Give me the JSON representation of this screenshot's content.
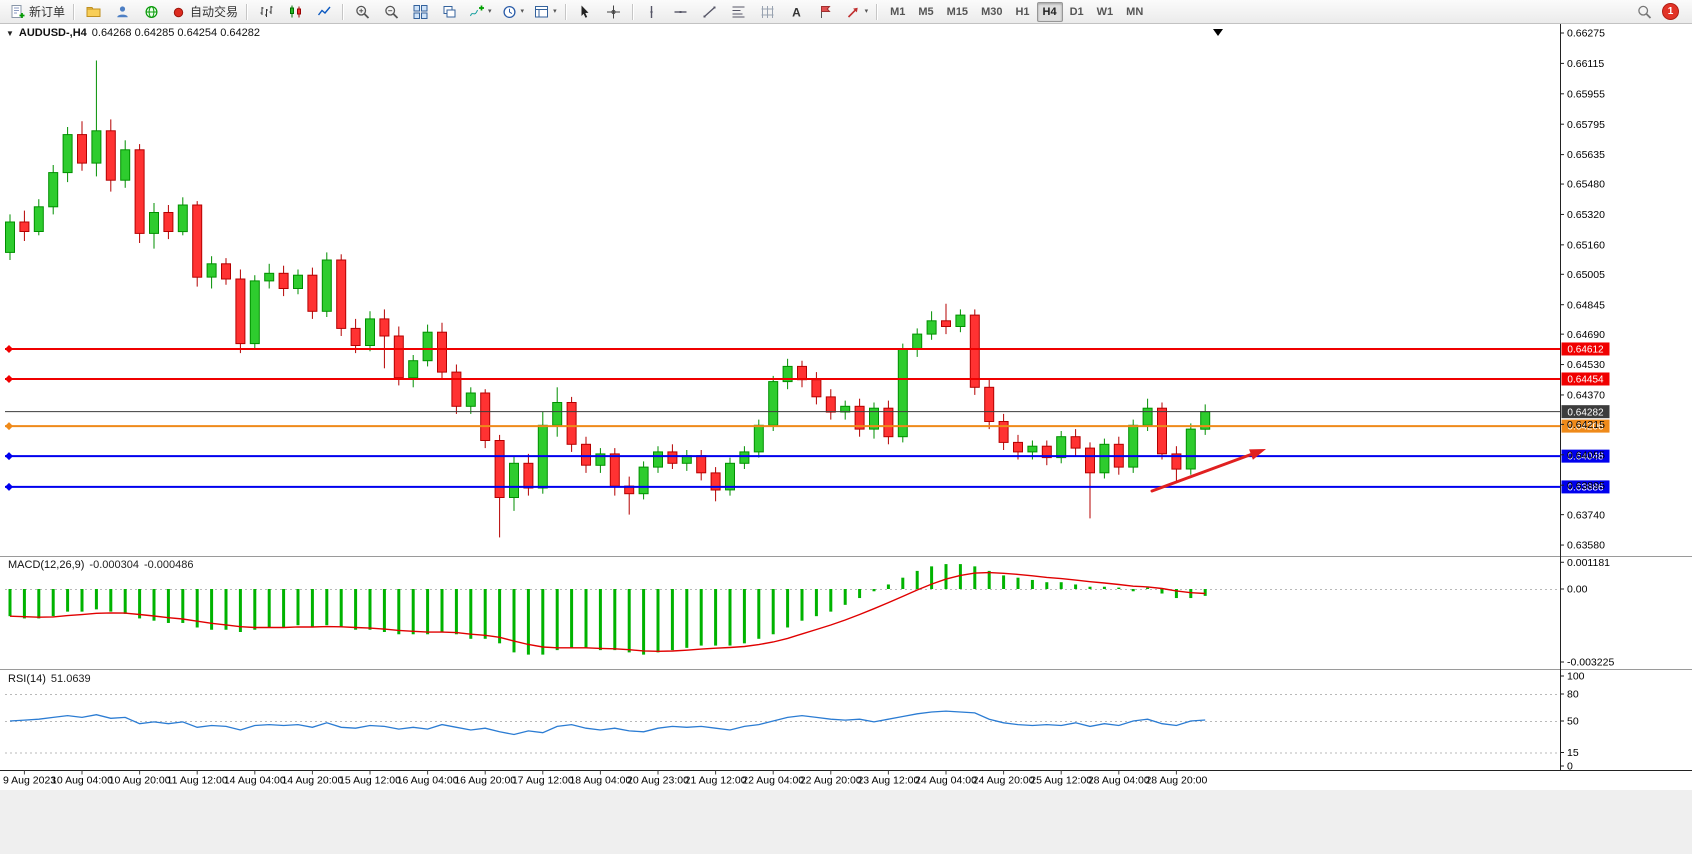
{
  "toolbar": {
    "new_order": "新订单",
    "auto_trading": "自动交易",
    "timeframes": [
      "M1",
      "M5",
      "M15",
      "M30",
      "H1",
      "H4",
      "D1",
      "W1",
      "MN"
    ],
    "active_timeframe": "H4",
    "notification_count": "1"
  },
  "window": {
    "symbol_label": "AUDUSD-,H4",
    "ohlc_label": "0.64268 0.64285 0.64254 0.64282"
  },
  "chart_data": {
    "type": "candlestick",
    "title": "AUDUSD- H4 chart with MACD and RSI",
    "symbol": "AUDUSD-",
    "timeframe": "H4",
    "current_ohlc": {
      "open": 0.64268,
      "high": 0.64285,
      "low": 0.64254,
      "close": 0.64282
    },
    "price_axis": [
      "0.66275",
      "0.66115",
      "0.65955",
      "0.65795",
      "0.65635",
      "0.65480",
      "0.65320",
      "0.65160",
      "0.65005",
      "0.64845",
      "0.64690",
      "0.64530",
      "0.64370",
      "0.64215",
      "0.64055",
      "0.63895",
      "0.63740",
      "0.63580"
    ],
    "time_labels": [
      "9 Aug 2023",
      "10 Aug 04:00",
      "10 Aug 20:00",
      "11 Aug 12:00",
      "14 Aug 04:00",
      "14 Aug 20:00",
      "15 Aug 12:00",
      "16 Aug 04:00",
      "16 Aug 20:00",
      "17 Aug 12:00",
      "18 Aug 04:00",
      "20 Aug 23:00",
      "21 Aug 12:00",
      "22 Aug 04:00",
      "22 Aug 20:00",
      "23 Aug 12:00",
      "24 Aug 04:00",
      "24 Aug 20:00",
      "25 Aug 12:00",
      "28 Aug 04:00",
      "28 Aug 20:00"
    ],
    "candles": [
      [
        0.6512,
        0.6532,
        0.6508,
        0.6528
      ],
      [
        0.6528,
        0.6534,
        0.6518,
        0.6523
      ],
      [
        0.6523,
        0.654,
        0.6521,
        0.6536
      ],
      [
        0.6536,
        0.6558,
        0.6532,
        0.6554
      ],
      [
        0.6554,
        0.6578,
        0.6549,
        0.6574
      ],
      [
        0.6574,
        0.6581,
        0.6555,
        0.6559
      ],
      [
        0.6559,
        0.6613,
        0.6552,
        0.6576
      ],
      [
        0.6576,
        0.6582,
        0.6544,
        0.655
      ],
      [
        0.655,
        0.6571,
        0.6546,
        0.6566
      ],
      [
        0.6566,
        0.6569,
        0.6517,
        0.6522
      ],
      [
        0.6522,
        0.6538,
        0.6514,
        0.6533
      ],
      [
        0.6533,
        0.6537,
        0.6519,
        0.6523
      ],
      [
        0.6523,
        0.6541,
        0.6521,
        0.6537
      ],
      [
        0.6537,
        0.6539,
        0.6494,
        0.6499
      ],
      [
        0.6499,
        0.651,
        0.6493,
        0.6506
      ],
      [
        0.6506,
        0.6509,
        0.6495,
        0.6498
      ],
      [
        0.6498,
        0.6503,
        0.6459,
        0.6464
      ],
      [
        0.6464,
        0.65,
        0.6461,
        0.6497
      ],
      [
        0.6497,
        0.6506,
        0.6493,
        0.6501
      ],
      [
        0.6501,
        0.6505,
        0.6489,
        0.6493
      ],
      [
        0.6493,
        0.6503,
        0.649,
        0.65
      ],
      [
        0.65,
        0.6504,
        0.6477,
        0.6481
      ],
      [
        0.6481,
        0.6512,
        0.6478,
        0.6508
      ],
      [
        0.6508,
        0.6511,
        0.6468,
        0.6472
      ],
      [
        0.6472,
        0.6477,
        0.6459,
        0.6463
      ],
      [
        0.6463,
        0.6481,
        0.646,
        0.6477
      ],
      [
        0.6477,
        0.6482,
        0.6451,
        0.6468
      ],
      [
        0.6468,
        0.6473,
        0.6442,
        0.6446
      ],
      [
        0.6446,
        0.6458,
        0.6441,
        0.6455
      ],
      [
        0.6455,
        0.6474,
        0.6452,
        0.647
      ],
      [
        0.647,
        0.6475,
        0.6445,
        0.6449
      ],
      [
        0.6449,
        0.6453,
        0.6427,
        0.6431
      ],
      [
        0.6431,
        0.6441,
        0.6427,
        0.6438
      ],
      [
        0.6438,
        0.644,
        0.6409,
        0.6413
      ],
      [
        0.6413,
        0.6416,
        0.6362,
        0.6383
      ],
      [
        0.6383,
        0.6405,
        0.6376,
        0.6401
      ],
      [
        0.6401,
        0.6406,
        0.6384,
        0.6388
      ],
      [
        0.6388,
        0.6428,
        0.6385,
        0.6421
      ],
      [
        0.6421,
        0.6441,
        0.6415,
        0.6433
      ],
      [
        0.6433,
        0.6436,
        0.6407,
        0.6411
      ],
      [
        0.6411,
        0.6415,
        0.6396,
        0.64
      ],
      [
        0.64,
        0.6409,
        0.6396,
        0.6406
      ],
      [
        0.6406,
        0.6409,
        0.6384,
        0.6389
      ],
      [
        0.6389,
        0.6394,
        0.6374,
        0.6385
      ],
      [
        0.6385,
        0.6402,
        0.6382,
        0.6399
      ],
      [
        0.6399,
        0.641,
        0.6396,
        0.6407
      ],
      [
        0.6407,
        0.6411,
        0.6398,
        0.6401
      ],
      [
        0.6401,
        0.6408,
        0.6397,
        0.6405
      ],
      [
        0.6405,
        0.6408,
        0.6392,
        0.6396
      ],
      [
        0.6396,
        0.6399,
        0.6381,
        0.6387
      ],
      [
        0.6387,
        0.6404,
        0.6384,
        0.6401
      ],
      [
        0.6401,
        0.641,
        0.6398,
        0.6407
      ],
      [
        0.6407,
        0.6424,
        0.6404,
        0.6421
      ],
      [
        0.6421,
        0.6447,
        0.6418,
        0.6444
      ],
      [
        0.6444,
        0.6456,
        0.644,
        0.6452
      ],
      [
        0.6452,
        0.6455,
        0.6441,
        0.6445
      ],
      [
        0.6445,
        0.6449,
        0.6432,
        0.6436
      ],
      [
        0.6436,
        0.644,
        0.6424,
        0.6428
      ],
      [
        0.6428,
        0.6434,
        0.6424,
        0.6431
      ],
      [
        0.6431,
        0.6435,
        0.6415,
        0.6419
      ],
      [
        0.6419,
        0.6433,
        0.6414,
        0.643
      ],
      [
        0.643,
        0.6434,
        0.6411,
        0.6415
      ],
      [
        0.6415,
        0.6464,
        0.6412,
        0.6461
      ],
      [
        0.6461,
        0.6472,
        0.6457,
        0.6469
      ],
      [
        0.6469,
        0.6481,
        0.6466,
        0.6476
      ],
      [
        0.6476,
        0.6485,
        0.6469,
        0.6473
      ],
      [
        0.6473,
        0.6482,
        0.647,
        0.6479
      ],
      [
        0.6479,
        0.6482,
        0.6437,
        0.6441
      ],
      [
        0.6441,
        0.6445,
        0.6419,
        0.6423
      ],
      [
        0.6423,
        0.6427,
        0.6408,
        0.6412
      ],
      [
        0.6412,
        0.6416,
        0.6403,
        0.6407
      ],
      [
        0.6407,
        0.6413,
        0.6403,
        0.641
      ],
      [
        0.641,
        0.6413,
        0.64,
        0.6404
      ],
      [
        0.6404,
        0.6418,
        0.6401,
        0.6415
      ],
      [
        0.6415,
        0.6419,
        0.6405,
        0.6409
      ],
      [
        0.6409,
        0.6412,
        0.6372,
        0.6396
      ],
      [
        0.6396,
        0.6414,
        0.6393,
        0.6411
      ],
      [
        0.6411,
        0.6415,
        0.6395,
        0.6399
      ],
      [
        0.6399,
        0.6424,
        0.6396,
        0.6421
      ],
      [
        0.6421,
        0.6435,
        0.6418,
        0.643
      ],
      [
        0.643,
        0.6433,
        0.6403,
        0.6406
      ],
      [
        0.6406,
        0.641,
        0.6391,
        0.6398
      ],
      [
        0.6398,
        0.6422,
        0.6395,
        0.6419
      ],
      [
        0.6419,
        0.6432,
        0.6416,
        0.64282
      ]
    ],
    "levels": [
      {
        "price": 0.64612,
        "label": "0.64612",
        "color": "#f00000",
        "width": 2,
        "marker": true
      },
      {
        "price": 0.64454,
        "label": "0.64454",
        "color": "#f00000",
        "width": 2,
        "marker": true
      },
      {
        "price": 0.64282,
        "label": "0.64282",
        "color": "#3c3c3c",
        "width": 1,
        "marker": false
      },
      {
        "price": 0.64206,
        "label": "0.64206",
        "color": "#ef8a1a",
        "width": 2,
        "marker": true
      },
      {
        "price": 0.64048,
        "label": "0.64048",
        "color": "#0000ee",
        "width": 2,
        "marker": true
      },
      {
        "price": 0.63886,
        "label": "0.63886",
        "color": "#0000ee",
        "width": 2,
        "marker": true
      }
    ],
    "macd": {
      "label": "MACD(12,26,9)",
      "main": "-0.000304",
      "signal": "-0.000486",
      "axis": [
        "0.001181",
        "0.00",
        "-0.003225"
      ],
      "histogram": [
        -0.0012,
        -0.0013,
        -0.0013,
        -0.0012,
        -0.001,
        -0.001,
        -0.0009,
        -0.001,
        -0.0011,
        -0.0013,
        -0.0014,
        -0.0015,
        -0.0015,
        -0.0017,
        -0.0018,
        -0.0018,
        -0.0019,
        -0.0018,
        -0.0017,
        -0.0017,
        -0.0016,
        -0.0017,
        -0.0016,
        -0.0017,
        -0.0018,
        -0.0018,
        -0.0019,
        -0.002,
        -0.002,
        -0.002,
        -0.0019,
        -0.002,
        -0.0022,
        -0.0022,
        -0.0024,
        -0.0028,
        -0.0029,
        -0.0029,
        -0.0027,
        -0.0026,
        -0.0026,
        -0.0027,
        -0.0027,
        -0.0028,
        -0.0029,
        -0.0028,
        -0.0027,
        -0.0026,
        -0.0025,
        -0.0025,
        -0.0025,
        -0.0024,
        -0.0022,
        -0.002,
        -0.0017,
        -0.0014,
        -0.0012,
        -0.001,
        -0.0007,
        -0.0004,
        -0.0001,
        0.0002,
        0.0005,
        0.0008,
        0.001,
        0.0011,
        0.0011,
        0.001,
        0.0008,
        0.0006,
        0.0005,
        0.0004,
        0.0003,
        0.0003,
        0.0002,
        0.0001,
        0.0001,
        0.0,
        -0.0001,
        0.0,
        -0.0002,
        -0.0004,
        -0.0004,
        -0.000304
      ]
    },
    "rsi": {
      "label": "RSI(14)",
      "value": "51.0639",
      "axis": [
        "100",
        "80",
        "50",
        "15",
        "0"
      ],
      "levels": [
        80,
        50,
        15
      ],
      "values": [
        50,
        51,
        52,
        54,
        56,
        54,
        57,
        53,
        54,
        47,
        49,
        47,
        49,
        43,
        45,
        44,
        40,
        45,
        46,
        45,
        46,
        43,
        48,
        43,
        42,
        45,
        44,
        41,
        43,
        41,
        46,
        43,
        40,
        42,
        38,
        35,
        39,
        37,
        44,
        46,
        42,
        40,
        42,
        39,
        38,
        42,
        44,
        43,
        44,
        42,
        40,
        44,
        46,
        50,
        54,
        56,
        54,
        52,
        51,
        52,
        49,
        52,
        55,
        58,
        60,
        61,
        60,
        59,
        52,
        48,
        46,
        45,
        46,
        45,
        48,
        44,
        47,
        45,
        50,
        52,
        47,
        45,
        50,
        51.06
      ]
    },
    "annotation_arrow": {
      "color": "#e02020",
      "direction": "up-right"
    }
  }
}
